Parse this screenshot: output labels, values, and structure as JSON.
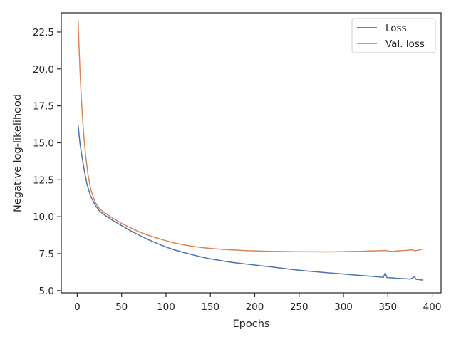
{
  "chart_data": {
    "type": "line",
    "title": "",
    "xlabel": "Epochs",
    "ylabel": "Negative log-likelihood",
    "xlim": [
      -18,
      410
    ],
    "ylim": [
      4.85,
      23.8
    ],
    "xticks": [
      0,
      50,
      100,
      150,
      200,
      250,
      300,
      350,
      400
    ],
    "yticks": [
      5.0,
      7.5,
      10.0,
      12.5,
      15.0,
      17.5,
      20.0,
      22.5
    ],
    "xtick_labels": [
      "0",
      "50",
      "100",
      "150",
      "200",
      "250",
      "300",
      "350",
      "400"
    ],
    "ytick_labels": [
      "5.0",
      "7.5",
      "10.0",
      "12.5",
      "15.0",
      "17.5",
      "20.0",
      "22.5"
    ],
    "grid": false,
    "legend_position": "top-right",
    "series": [
      {
        "name": "Loss",
        "color": "#4c72b0",
        "x": [
          1,
          3,
          5,
          8,
          11,
          15,
          20,
          25,
          30,
          35,
          40,
          50,
          60,
          70,
          80,
          90,
          100,
          110,
          120,
          130,
          140,
          150,
          160,
          170,
          180,
          190,
          200,
          210,
          220,
          230,
          240,
          250,
          260,
          270,
          280,
          290,
          300,
          310,
          320,
          330,
          340,
          345,
          347,
          349,
          355,
          360,
          365,
          370,
          375,
          378,
          380,
          382,
          385,
          388,
          390
        ],
        "y": [
          16.2,
          15.0,
          14.2,
          13.1,
          12.2,
          11.4,
          10.8,
          10.4,
          10.15,
          9.95,
          9.75,
          9.4,
          9.05,
          8.75,
          8.45,
          8.2,
          7.95,
          7.75,
          7.58,
          7.42,
          7.28,
          7.15,
          7.05,
          6.95,
          6.87,
          6.8,
          6.73,
          6.66,
          6.6,
          6.52,
          6.45,
          6.38,
          6.32,
          6.27,
          6.22,
          6.17,
          6.12,
          6.07,
          6.02,
          5.98,
          5.93,
          5.9,
          6.2,
          5.88,
          5.86,
          5.83,
          5.82,
          5.8,
          5.78,
          5.85,
          5.95,
          5.76,
          5.75,
          5.72,
          5.73
        ]
      },
      {
        "name": "Val. loss",
        "color": "#dd8452",
        "x": [
          1,
          2,
          3,
          4,
          5,
          7,
          9,
          12,
          15,
          20,
          25,
          30,
          35,
          40,
          50,
          60,
          70,
          80,
          90,
          100,
          110,
          120,
          130,
          140,
          150,
          160,
          170,
          180,
          190,
          200,
          210,
          220,
          230,
          240,
          250,
          260,
          270,
          280,
          290,
          300,
          310,
          320,
          330,
          340,
          348,
          350,
          355,
          360,
          370,
          378,
          380,
          385,
          388,
          390
        ],
        "y": [
          23.3,
          21.5,
          20.0,
          18.7,
          17.6,
          15.8,
          14.4,
          12.9,
          11.9,
          11.0,
          10.55,
          10.3,
          10.1,
          9.9,
          9.55,
          9.25,
          8.97,
          8.75,
          8.55,
          8.38,
          8.22,
          8.1,
          8.0,
          7.92,
          7.86,
          7.81,
          7.77,
          7.74,
          7.71,
          7.69,
          7.67,
          7.66,
          7.65,
          7.64,
          7.63,
          7.63,
          7.63,
          7.62,
          7.63,
          7.64,
          7.65,
          7.66,
          7.68,
          7.7,
          7.72,
          7.68,
          7.65,
          7.68,
          7.72,
          7.76,
          7.7,
          7.74,
          7.8,
          7.79
        ]
      }
    ]
  }
}
